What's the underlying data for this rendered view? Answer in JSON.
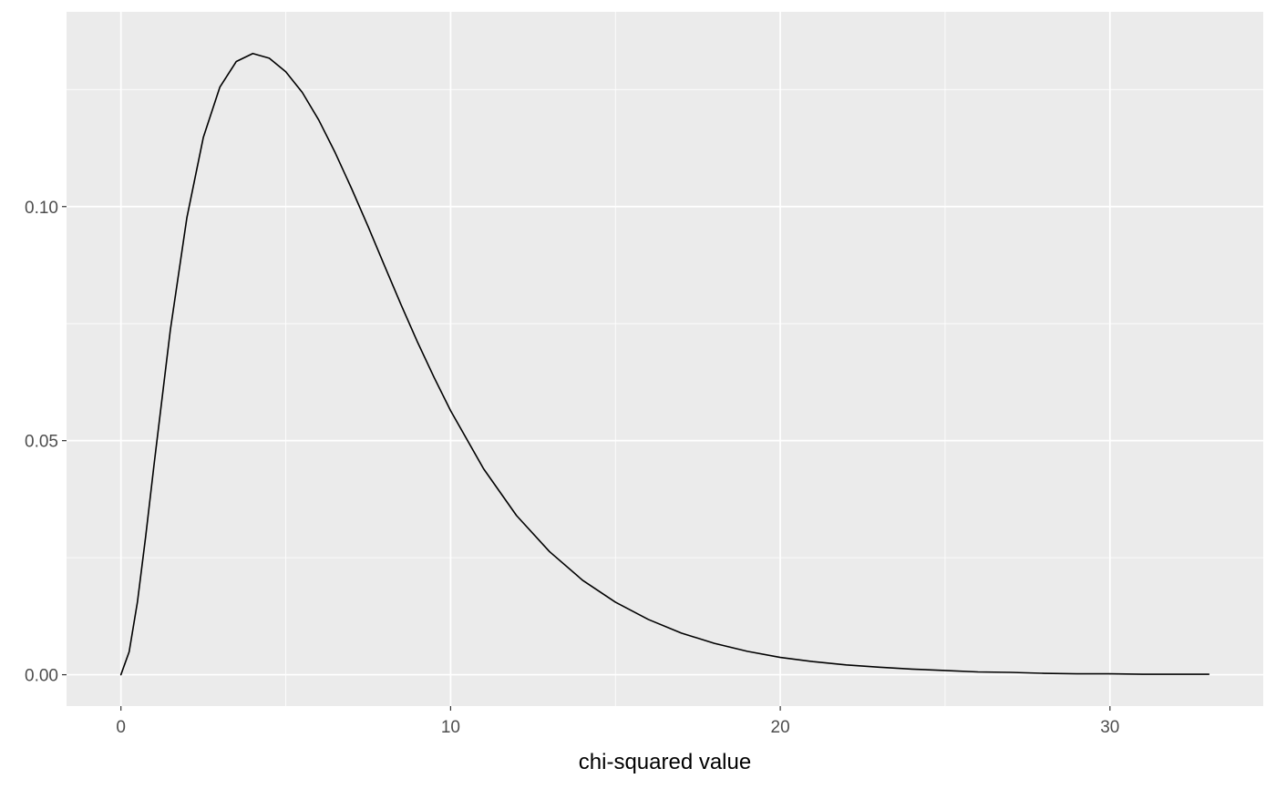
{
  "chart_data": {
    "type": "line",
    "title": "",
    "xlabel": "chi-squared value",
    "ylabel": "",
    "xlim": [
      -1.65,
      34.65
    ],
    "ylim": [
      -0.0067,
      0.1416
    ],
    "grid": true,
    "legend": "none",
    "x_ticks": [
      0,
      10,
      20,
      30
    ],
    "x_tick_labels": [
      "0",
      "10",
      "20",
      "30"
    ],
    "y_ticks": [
      0.0,
      0.05,
      0.1
    ],
    "y_tick_labels": [
      "0.00",
      "0.05",
      "0.10"
    ],
    "x_minor_ticks": [
      5,
      15,
      25
    ],
    "y_minor_ticks": [
      0.025,
      0.075,
      0.125
    ],
    "colors": {
      "panel_background": "#EBEBEB",
      "grid_line": "#FFFFFF",
      "line": "#000000",
      "tick_label": "#4D4D4D",
      "tick_mark": "#333333"
    },
    "series": [
      {
        "x": [
          0,
          0.25,
          0.5,
          0.75,
          1,
          1.5,
          2,
          2.5,
          3,
          3.5,
          4,
          4.5,
          5,
          5.5,
          6,
          6.5,
          7,
          7.5,
          8,
          8.5,
          9,
          9.5,
          10,
          11,
          12,
          13,
          14,
          15,
          16,
          17,
          18,
          19,
          20,
          21,
          22,
          23,
          24,
          25,
          26,
          27,
          28,
          29,
          30,
          31,
          32,
          33
        ],
        "values": [
          0.0,
          0.0049,
          0.0155,
          0.0295,
          0.0446,
          0.0737,
          0.0976,
          0.1148,
          0.1255,
          0.131,
          0.1327,
          0.1317,
          0.1288,
          0.1244,
          0.1185,
          0.1115,
          0.1038,
          0.0957,
          0.0873,
          0.079,
          0.071,
          0.0635,
          0.0564,
          0.044,
          0.034,
          0.0263,
          0.0202,
          0.0155,
          0.0118,
          0.0089,
          0.0067,
          0.005,
          0.0037,
          0.0028,
          0.0021,
          0.0016,
          0.0012,
          0.0009,
          0.0006,
          0.0005,
          0.0003,
          0.0002,
          0.0002,
          0.0001,
          0.0001,
          0.0001
        ]
      }
    ]
  }
}
